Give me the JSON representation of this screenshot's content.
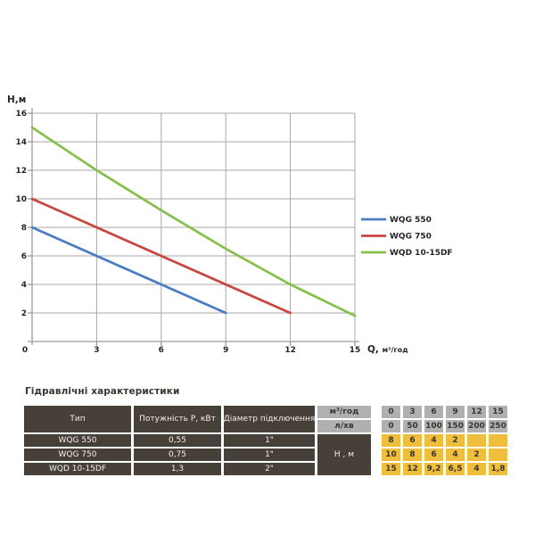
{
  "chart_data": {
    "type": "line",
    "title": "",
    "ylabel": "Н,м",
    "xlabel": "Q, м³/год",
    "xlim": [
      0,
      15
    ],
    "ylim": [
      0,
      16
    ],
    "x_ticks": [
      0,
      3,
      6,
      9,
      12,
      15
    ],
    "y_ticks": [
      0,
      2,
      4,
      6,
      8,
      10,
      12,
      14,
      16
    ],
    "grid": true,
    "legend_position": "right",
    "series": [
      {
        "name": "WQG 550",
        "color": "#4a7cc4",
        "x": [
          0,
          3,
          6,
          9
        ],
        "y": [
          8,
          6,
          4,
          2
        ]
      },
      {
        "name": "WQG 750",
        "color": "#c9453f",
        "x": [
          0,
          3,
          6,
          9,
          12
        ],
        "y": [
          10,
          8,
          6,
          4,
          2
        ]
      },
      {
        "name": "WQD 10-15DF",
        "color": "#85c04d",
        "x": [
          0,
          3,
          6,
          9,
          12,
          15
        ],
        "y": [
          15,
          12,
          9.2,
          6.5,
          4,
          1.8
        ]
      }
    ]
  },
  "table": {
    "title": "Гідравлічні характеристики",
    "columns": [
      "Тип",
      "Потужність  Р, кВт",
      "Діаметр підключення"
    ],
    "flow_rows": [
      {
        "label": "м³/год",
        "values": [
          "0",
          "3",
          "6",
          "9",
          "12",
          "15"
        ]
      },
      {
        "label": "л/хв",
        "values": [
          "0",
          "50",
          "100",
          "150",
          "200",
          "250"
        ]
      }
    ],
    "head_column_label": "Н , м",
    "rows": [
      {
        "type": "WQG 550",
        "power": "0,55",
        "diameter": "1\"",
        "head_values": [
          "8",
          "6",
          "4",
          "2",
          "",
          ""
        ]
      },
      {
        "type": "WQG 750",
        "power": "0,75",
        "diameter": "1\"",
        "head_values": [
          "10",
          "8",
          "6",
          "4",
          "2",
          ""
        ]
      },
      {
        "type": "WQD 10-15DF",
        "power": "1,3",
        "diameter": "2\"",
        "head_values": [
          "15",
          "12",
          "9,2",
          "6,5",
          "4",
          "1,8"
        ]
      }
    ]
  },
  "colors": {
    "table_dark": "#474038",
    "table_gray": "#b0b0b0",
    "table_yellow": "#efbe3d",
    "grid_line": "#a8a8a8",
    "axis_line": "#9b9b9b",
    "text_dark": "#262626"
  }
}
